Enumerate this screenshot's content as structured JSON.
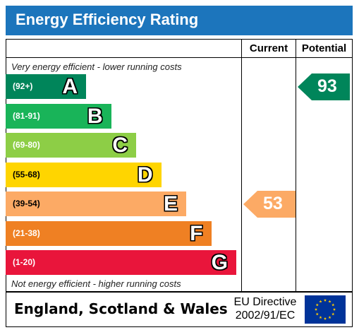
{
  "title": "Energy Efficiency Rating",
  "columns": {
    "current": "Current",
    "potential": "Potential"
  },
  "top_caption": "Very energy efficient - lower running costs",
  "bottom_caption": "Not energy efficient - higher running costs",
  "bands": [
    {
      "range": "(92+)",
      "letter": "A",
      "color": "#00855a",
      "text_dark": false
    },
    {
      "range": "(81-91)",
      "letter": "B",
      "color": "#19b459",
      "text_dark": false
    },
    {
      "range": "(69-80)",
      "letter": "C",
      "color": "#8dce46",
      "text_dark": false
    },
    {
      "range": "(55-68)",
      "letter": "D",
      "color": "#ffd500",
      "text_dark": true
    },
    {
      "range": "(39-54)",
      "letter": "E",
      "color": "#fcaa65",
      "text_dark": true
    },
    {
      "range": "(21-38)",
      "letter": "F",
      "color": "#ef8023",
      "text_dark": false
    },
    {
      "range": "(1-20)",
      "letter": "G",
      "color": "#e9153b",
      "text_dark": false
    }
  ],
  "current": {
    "value": "53",
    "band": "E",
    "color": "#fcaa65"
  },
  "potential": {
    "value": "93",
    "band": "A",
    "color": "#00855a"
  },
  "footer": {
    "region": "England, Scotland & Wales",
    "directive_line1": "EU Directive",
    "directive_line2": "2002/91/EC"
  },
  "flag_icon": "eu-flag-icon"
}
